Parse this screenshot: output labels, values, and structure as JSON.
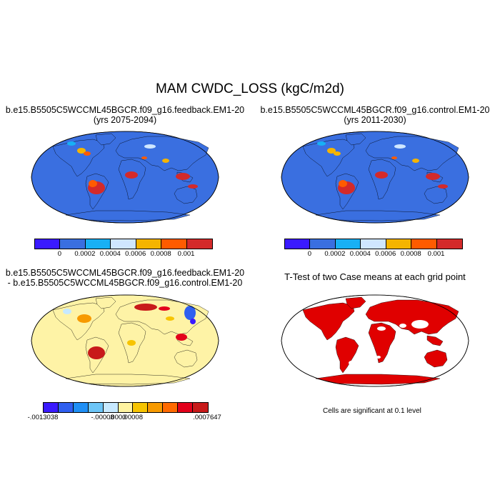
{
  "title": "MAM CWDC_LOSS (kgC/m2d)",
  "panels": [
    {
      "id": "feedback",
      "title_line1": "b.e15.B5505C5WCCML45BGCR.f09_g16.feedback.EM1-20",
      "title_line2": "(yrs 2075-2094)",
      "ocean": "#3a6fe0",
      "colorbar": {
        "colors": [
          "#3a1aff",
          "#3a6fe0",
          "#18b0f5",
          "#cfe6ff",
          "#f5b400",
          "#ff5b00",
          "#d42a2a"
        ],
        "labels": [
          "0",
          "0.0002",
          "0.0004",
          "0.0006",
          "0.0008",
          "0.001"
        ]
      }
    },
    {
      "id": "control",
      "title_line1": "b.e15.B5505C5WCCML45BGCR.f09_g16.control.EM1-20",
      "title_line2": "(yrs 2011-2030)",
      "ocean": "#3a6fe0",
      "colorbar": {
        "colors": [
          "#3a1aff",
          "#3a6fe0",
          "#18b0f5",
          "#cfe6ff",
          "#f5b400",
          "#ff5b00",
          "#d42a2a"
        ],
        "labels": [
          "0",
          "0.0002",
          "0.0004",
          "0.0006",
          "0.0008",
          "0.001"
        ]
      }
    },
    {
      "id": "difference",
      "title_line1": "b.e15.B5505C5WCCML45BGCR.f09_g16.feedback.EM1-20",
      "title_line2": "- b.e15.B5505C5WCCML45BGCR.f09_g16.control.EM1-20",
      "ocean": "#fef3a6",
      "colorbar": {
        "colors": [
          "#3a1aff",
          "#2f5ff0",
          "#1f8ff5",
          "#6cc5f7",
          "#c7e9ff",
          "#fff3a0",
          "#f7c400",
          "#f79a00",
          "#ff6a00",
          "#e3001b",
          "#c81a1a"
        ],
        "labels": [
          "-.0013038",
          "-.00008",
          ".0000",
          ".00008",
          ".0007647"
        ]
      }
    },
    {
      "id": "ttest",
      "title_line1": "T-Test of two Case means at each grid point",
      "ocean": "#ffffff",
      "note": "Cells are significant at 0.1 level"
    }
  ],
  "chart_data": [
    {
      "type": "heatmap",
      "title": "b.e15.B5505C5WCCML45BGCR.f09_g16.feedback.EM1-20 (yrs 2075-2094)",
      "variable": "CWDC_LOSS",
      "units": "kgC/m2d",
      "season": "MAM",
      "levels": [
        0,
        0.0002,
        0.0004,
        0.0006,
        0.0008,
        0.001
      ]
    },
    {
      "type": "heatmap",
      "title": "b.e15.B5505C5WCCML45BGCR.f09_g16.control.EM1-20 (yrs 2011-2030)",
      "variable": "CWDC_LOSS",
      "units": "kgC/m2d",
      "season": "MAM",
      "levels": [
        0,
        0.0002,
        0.0004,
        0.0006,
        0.0008,
        0.001
      ]
    },
    {
      "type": "heatmap",
      "title": "feedback.EM1-20 - control.EM1-20",
      "variable": "CWDC_LOSS difference",
      "units": "kgC/m2d",
      "min": -0.0013038,
      "max": 0.0007647,
      "levels": [
        -8e-05,
        0.0,
        8e-05
      ]
    },
    {
      "type": "heatmap",
      "title": "T-Test of two Case means at each grid point",
      "significance_level": 0.1
    }
  ]
}
